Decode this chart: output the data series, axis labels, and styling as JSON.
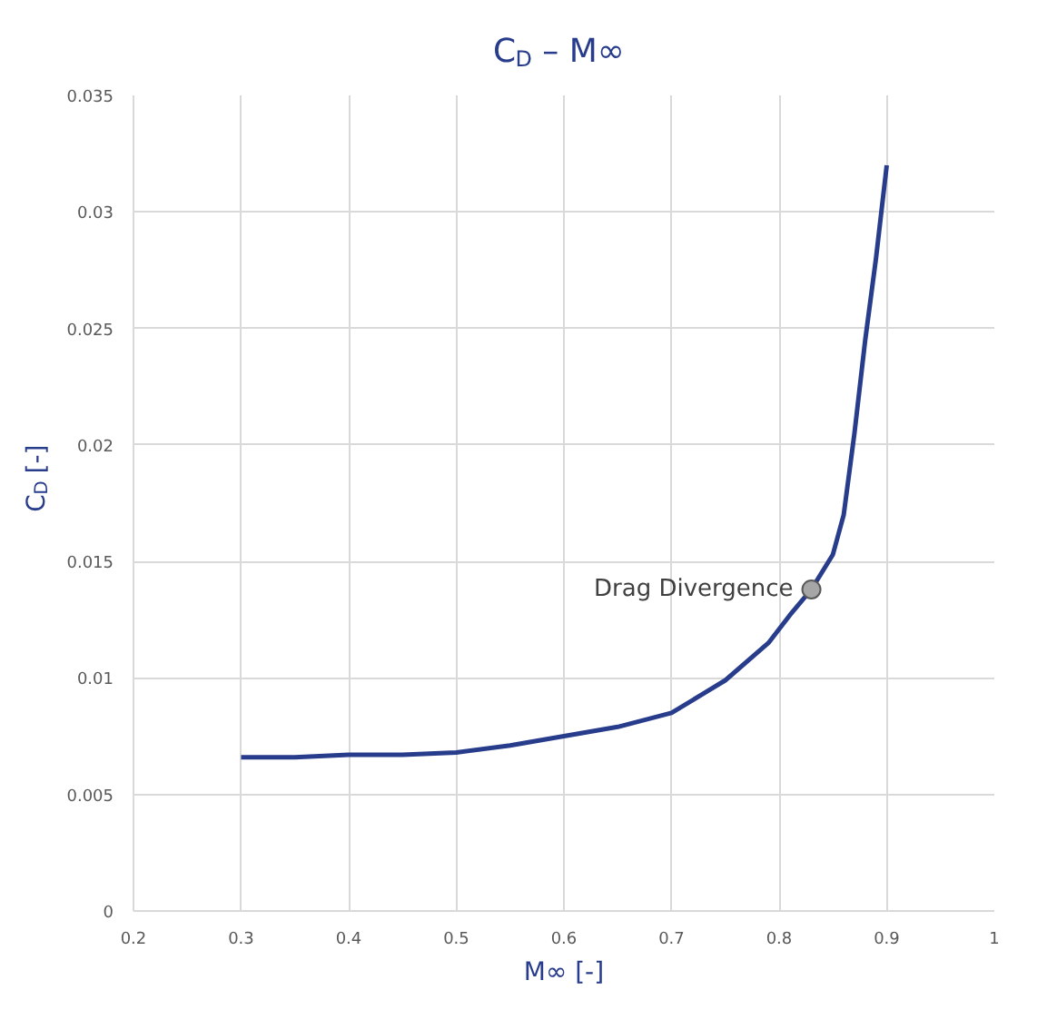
{
  "chart_data": {
    "type": "line",
    "title": "C$_{D}$ – M∞",
    "xlabel": "M∞ [-]",
    "ylabel": "C$_{D}$ [-]",
    "x": [
      0.3,
      0.35,
      0.4,
      0.45,
      0.5,
      0.55,
      0.6,
      0.65,
      0.7,
      0.75,
      0.79,
      0.81,
      0.83,
      0.85,
      0.86,
      0.87,
      0.88,
      0.89,
      0.9
    ],
    "series": [
      {
        "color": "#283c8c",
        "values": [
          0.0066,
          0.0066,
          0.0067,
          0.0067,
          0.0068,
          0.0071,
          0.0075,
          0.0079,
          0.0085,
          0.0099,
          0.0115,
          0.0127,
          0.0138,
          0.0153,
          0.017,
          0.0205,
          0.0245,
          0.028,
          0.032
        ]
      },
      {
        "type": "scatter",
        "color": "#a6a6a6",
        "x": [
          0.83
        ],
        "values": [
          0.0138
        ],
        "marker": "circle"
      }
    ],
    "annotations": [
      {
        "text": "Drag Divergence",
        "x": 0.83,
        "y": 0.0138
      }
    ],
    "xlim": [
      0.2,
      1
    ],
    "xticks": [
      0.2,
      0.3,
      0.4,
      0.5,
      0.6,
      0.7,
      0.8,
      0.9,
      1
    ],
    "ylim": [
      0,
      0.035
    ],
    "yticks": [
      0,
      0.005,
      0.01,
      0.015,
      0.02,
      0.025,
      0.03,
      0.035
    ],
    "grid": true,
    "marker": "none",
    "line_style": "solid"
  }
}
